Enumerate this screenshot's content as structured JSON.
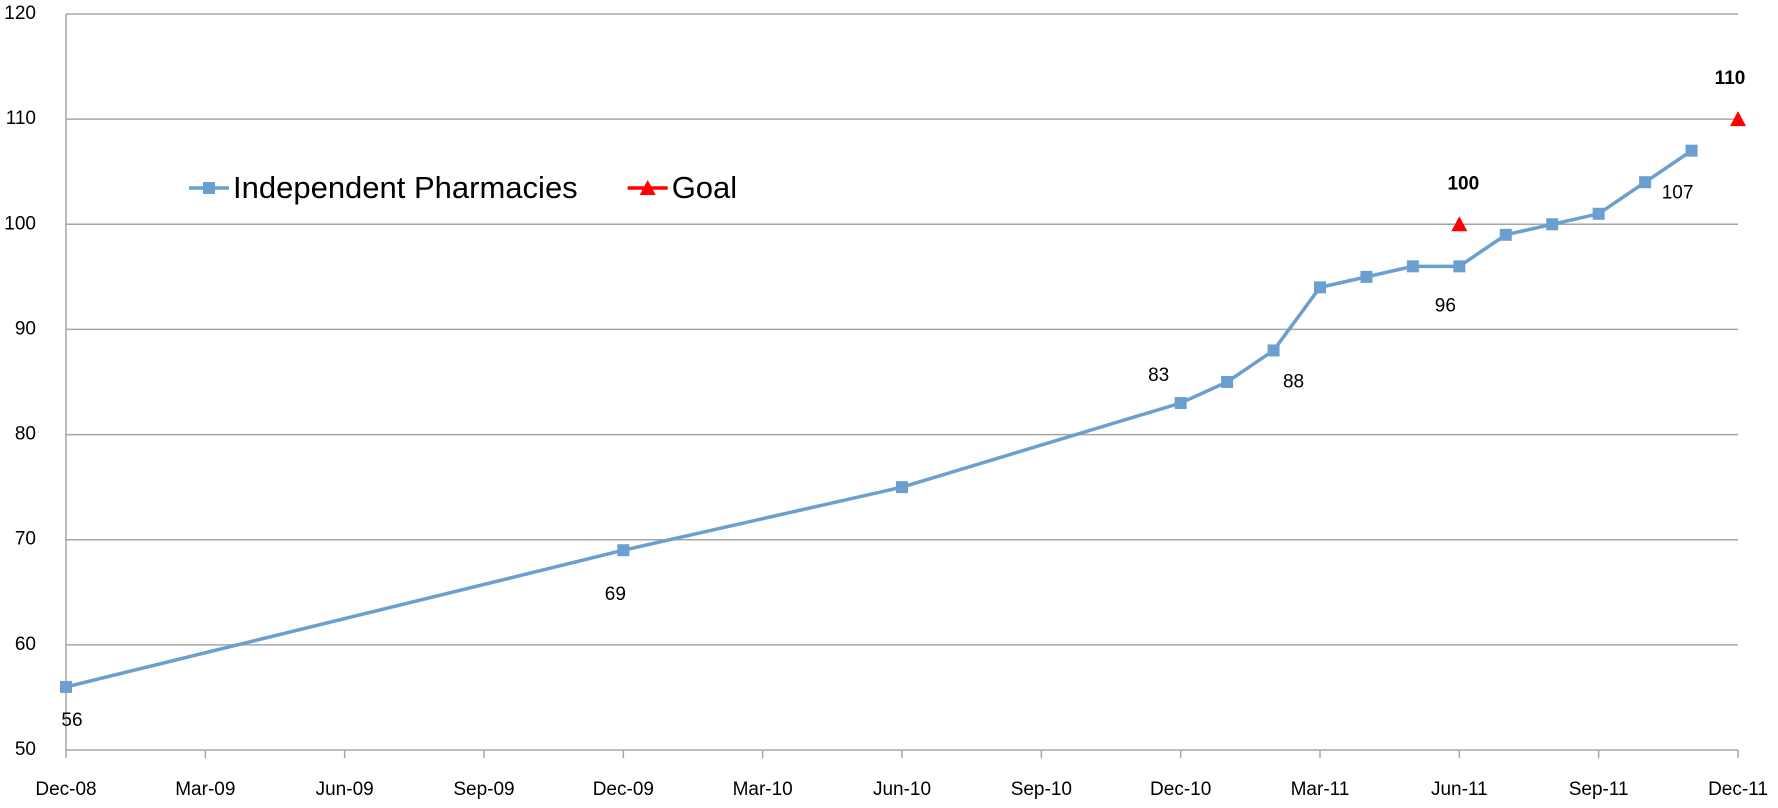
{
  "chart_data": {
    "type": "line",
    "xlim": [
      "2008-12",
      "2011-12"
    ],
    "xticks": [
      {
        "value": "2008-12",
        "label": "Dec-08"
      },
      {
        "value": "2009-03",
        "label": "Mar-09"
      },
      {
        "value": "2009-06",
        "label": "Jun-09"
      },
      {
        "value": "2009-09",
        "label": "Sep-09"
      },
      {
        "value": "2009-12",
        "label": "Dec-09"
      },
      {
        "value": "2010-03",
        "label": "Mar-10"
      },
      {
        "value": "2010-06",
        "label": "Jun-10"
      },
      {
        "value": "2010-09",
        "label": "Sep-10"
      },
      {
        "value": "2010-12",
        "label": "Dec-10"
      },
      {
        "value": "2011-03",
        "label": "Mar-11"
      },
      {
        "value": "2011-06",
        "label": "Jun-11"
      },
      {
        "value": "2011-09",
        "label": "Sep-11"
      },
      {
        "value": "2011-12",
        "label": "Dec-11"
      }
    ],
    "ylim": [
      50,
      120
    ],
    "yticks": [
      50,
      60,
      70,
      80,
      90,
      100,
      110,
      120
    ],
    "grid": true,
    "legend": "top-left",
    "series": [
      {
        "name": "Independent Pharmacies",
        "color": "#6a9fd0",
        "marker": "square",
        "x": [
          "2008-12",
          "2009-12",
          "2010-06",
          "2010-12",
          "2011-01",
          "2011-02",
          "2011-03",
          "2011-04",
          "2011-05",
          "2011-06",
          "2011-07",
          "2011-08",
          "2011-09",
          "2011-10",
          "2011-11"
        ],
        "values": [
          56,
          69,
          75,
          83,
          85,
          88,
          94,
          95,
          96,
          96,
          99,
          100,
          101,
          104,
          107
        ],
        "value_labels": [
          "56",
          "69",
          null,
          "83",
          null,
          "88",
          null,
          null,
          null,
          "96",
          null,
          null,
          null,
          null,
          "107"
        ]
      },
      {
        "name": "Goal",
        "color": "#ff0000",
        "marker": "triangle",
        "line": false,
        "x": [
          "2011-06",
          "2011-12"
        ],
        "values": [
          100,
          110
        ],
        "value_labels": [
          "100",
          "110"
        ]
      }
    ]
  }
}
